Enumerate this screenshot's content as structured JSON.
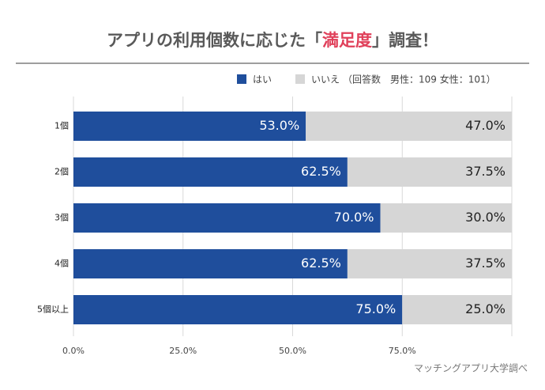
{
  "chart_data": {
    "type": "stacked-bar-horizontal",
    "title": [
      "アプリの利用個数に応じた「",
      "満足度",
      "」調査！"
    ],
    "legend_note": "（回答数　男性：109 女性：101）",
    "source": "マッチングアプリ大学調べ",
    "categories": [
      "1個",
      "2個",
      "3個",
      "4個",
      "5個以上"
    ],
    "series": [
      {
        "name": "はい",
        "color": "#1f4e9c",
        "values": [
          53.0,
          62.5,
          70.0,
          62.5,
          75.0
        ],
        "value_labels": [
          "53.0%",
          "62.5%",
          "70.0%",
          "62.5%",
          "75.0%"
        ]
      },
      {
        "name": "いいえ",
        "color": "#d6d6d6",
        "values": [
          47.0,
          37.5,
          30.0,
          37.5,
          25.0
        ],
        "value_labels": [
          "47.0%",
          "37.5%",
          "30.0%",
          "37.5%",
          "25.0%"
        ]
      }
    ],
    "xlim": [
      0,
      100
    ],
    "xticks": [
      {
        "value": 0,
        "label": "0.0%"
      },
      {
        "value": 25,
        "label": "25.0%"
      },
      {
        "value": 50,
        "label": "50.0%"
      },
      {
        "value": 75,
        "label": "75.0%"
      }
    ],
    "grid": true
  }
}
